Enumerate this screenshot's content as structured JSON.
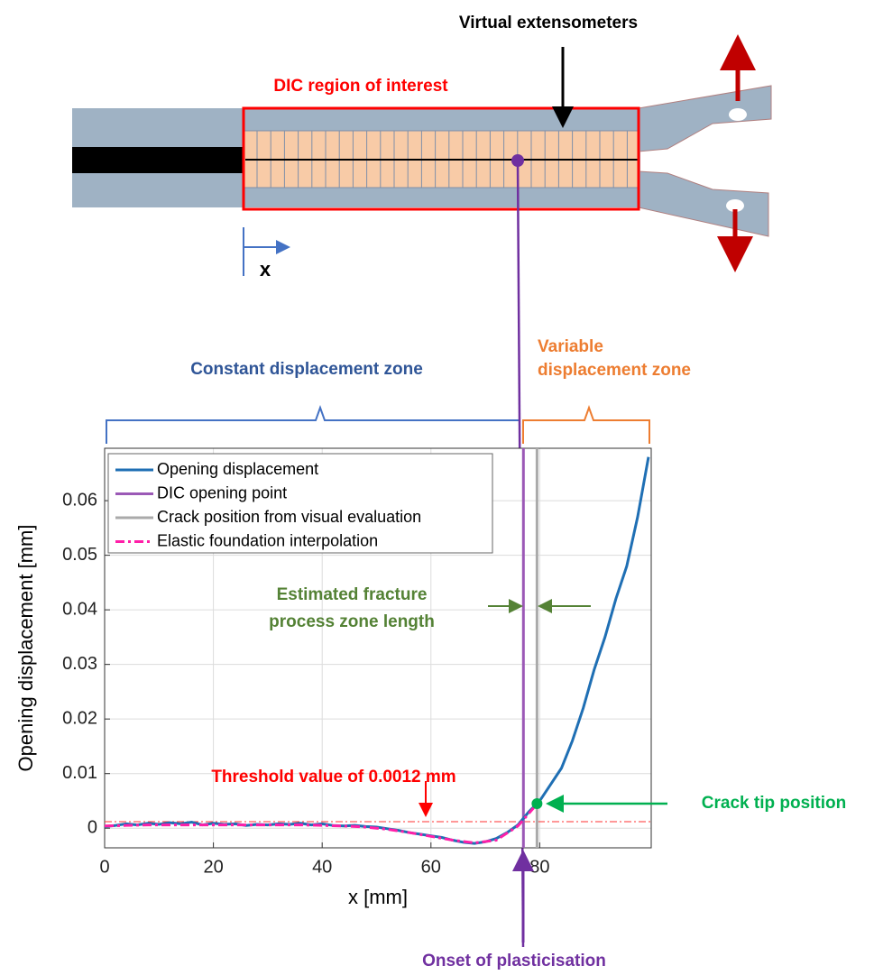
{
  "diagram": {
    "virtual_extensometers": "Virtual extensometers",
    "roi": "DIC region of interest",
    "axis": "x"
  },
  "chart_data": {
    "type": "line",
    "xlabel": "x [mm]",
    "ylabel": "Opening displacement [mm]",
    "xlim": [
      0,
      100.5
    ],
    "ylim": [
      -0.0036,
      0.0696
    ],
    "xticks": [
      0,
      20,
      40,
      60,
      80
    ],
    "yticks": [
      0,
      0.01,
      0.02,
      0.03,
      0.04,
      0.05,
      0.06
    ],
    "grid": true,
    "legend": "upper left",
    "series": [
      {
        "name": "Opening displacement",
        "color": "#1f6fb4",
        "line_style": "solid",
        "x": [
          0,
          2,
          4,
          6,
          8,
          10,
          12,
          14,
          16,
          18,
          20,
          22,
          24,
          26,
          28,
          30,
          32,
          34,
          36,
          38,
          40,
          42,
          44,
          46,
          48,
          50,
          52,
          54,
          56,
          58,
          60,
          62,
          64,
          66,
          68,
          70,
          72,
          74,
          76,
          78,
          80,
          82,
          84,
          86,
          88,
          90,
          92,
          94,
          96,
          98,
          100
        ],
        "values": [
          0.0003,
          0.0005,
          0.0008,
          0.0006,
          0.0009,
          0.0007,
          0.001,
          0.0008,
          0.0011,
          0.0006,
          0.0009,
          0.0007,
          0.0008,
          0.0005,
          0.0007,
          0.0006,
          0.0008,
          0.0007,
          0.0009,
          0.0006,
          0.0008,
          0.0005,
          0.0004,
          0.0005,
          0.0003,
          0.0002,
          -0.0001,
          -0.0004,
          -0.0008,
          -0.0011,
          -0.0014,
          -0.0017,
          -0.0022,
          -0.0026,
          -0.0028,
          -0.0025,
          -0.0019,
          -0.0008,
          0.0006,
          0.003,
          0.005,
          0.008,
          0.011,
          0.016,
          0.022,
          0.029,
          0.035,
          0.042,
          0.048,
          0.057,
          0.068
        ]
      },
      {
        "name": "DIC opening point",
        "color": "#9b59b6",
        "line_style": "solid",
        "x_position": 77
      },
      {
        "name": "Crack position from visual evaluation",
        "color": "#aaaaaa",
        "line_style": "solid",
        "x_position": 79.5
      },
      {
        "name": "Elastic foundation interpolation",
        "color": "#ff1fa8",
        "line_style": "dash-dot",
        "x": [
          0,
          4,
          8,
          12,
          16,
          20,
          24,
          28,
          32,
          36,
          40,
          44,
          48,
          52,
          56,
          60,
          64,
          68,
          72,
          76,
          80
        ],
        "values": [
          0.0004,
          0.0005,
          0.0006,
          0.0006,
          0.0006,
          0.0006,
          0.0006,
          0.0006,
          0.0006,
          0.0006,
          0.0005,
          0.0004,
          0.0002,
          -0.0002,
          -0.0008,
          -0.0015,
          -0.0022,
          -0.0027,
          -0.0022,
          0.0004,
          0.005
        ]
      }
    ],
    "threshold": {
      "value": 0.0012,
      "color": "#ff3030"
    },
    "crack_tip": {
      "x": 79.5,
      "y": 0.0045,
      "color": "#00b050"
    },
    "annotations": {
      "constant_zone": "Constant displacement zone",
      "variable_zone": [
        "Variable",
        "displacement zone"
      ],
      "fpz": [
        "Estimated fracture",
        "process zone length"
      ],
      "threshold_label": "Threshold value of 0.0012 mm",
      "crack_tip_label": "Crack tip position",
      "onset": "Onset of plasticisation"
    }
  }
}
